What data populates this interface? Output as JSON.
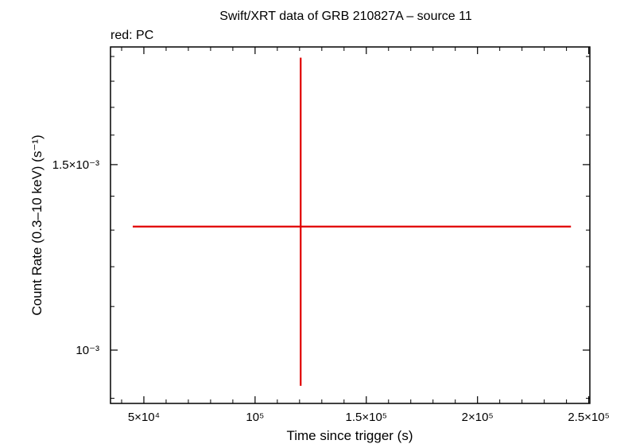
{
  "chart_data": {
    "type": "scatter",
    "title": "Swift/XRT data of GRB 210827A – source 11",
    "subtitle": "red: PC",
    "xlabel": "Time since trigger (s)",
    "ylabel": "Count Rate (0.3–10 keV) (s⁻¹)",
    "xlim": [
      35000,
      250500
    ],
    "ylim": [
      0.00089,
      0.00194
    ],
    "y_scale": "log",
    "x_ticks": [
      {
        "value": 50000,
        "label": "5×10⁴"
      },
      {
        "value": 100000,
        "label": "10⁵"
      },
      {
        "value": 150000,
        "label": "1.5×10⁵"
      },
      {
        "value": 200000,
        "label": "2×10⁵"
      },
      {
        "value": 250000,
        "label": "2.5×10⁵"
      }
    ],
    "y_ticks": [
      {
        "value": 0.001,
        "label": "10⁻³"
      },
      {
        "value": 0.0015,
        "label": "1.5×10⁻³"
      }
    ],
    "y_minor_ticks": [
      0.0009,
      0.0011,
      0.0012,
      0.0013,
      0.0014,
      0.0016,
      0.0017,
      0.0018,
      0.0019
    ],
    "series": [
      {
        "name": "PC",
        "color": "#e00000",
        "points": [
          {
            "x": 120500,
            "y": 0.00131,
            "x_err_minus": 75500,
            "x_err_plus": 121500,
            "y_err_minus": 0.000385,
            "y_err_plus": 0.000585
          }
        ]
      }
    ],
    "grid": false
  }
}
